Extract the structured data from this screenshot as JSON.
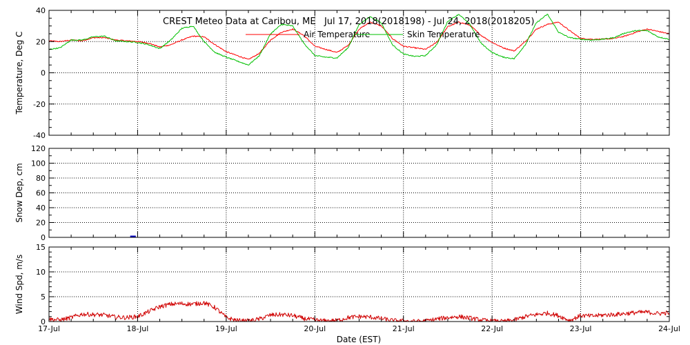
{
  "chart_data": {
    "title": "CREST Meteo Data at Caribou, ME   Jul 17, 2018(2018198) - Jul 24, 2018(2018205)",
    "xlabel": "Date (EST)",
    "x_range": [
      "2018-07-17",
      "2018-07-24"
    ],
    "x_ticks": [
      "17-Jul",
      "18-Jul",
      "19-Jul",
      "20-Jul",
      "21-Jul",
      "22-Jul",
      "23-Jul",
      "24-Jul"
    ],
    "grid": true,
    "panels": [
      {
        "type": "line",
        "ylabel": "Temperature, Deg C",
        "ylim": [
          -40,
          40
        ],
        "yticks": [
          "40",
          "20",
          "0",
          "-20",
          "-40"
        ],
        "legend_position": "top-center",
        "series": [
          {
            "name": "Air Temperature",
            "color": "#ff0000",
            "points": [
              [
                "2018-07-17 00:00",
                20.5
              ],
              [
                "2018-07-17 03:00",
                20.0
              ],
              [
                "2018-07-17 06:00",
                21.0
              ],
              [
                "2018-07-17 09:00",
                20.5
              ],
              [
                "2018-07-17 12:00",
                22.5
              ],
              [
                "2018-07-17 15:00",
                22.5
              ],
              [
                "2018-07-17 18:00",
                21.0
              ],
              [
                "2018-07-17 21:00",
                20.5
              ],
              [
                "2018-07-18 00:00",
                20.0
              ],
              [
                "2018-07-18 03:00",
                19.0
              ],
              [
                "2018-07-18 06:00",
                16.5
              ],
              [
                "2018-07-18 09:00",
                18.0
              ],
              [
                "2018-07-18 12:00",
                21.0
              ],
              [
                "2018-07-18 15:00",
                23.5
              ],
              [
                "2018-07-18 18:00",
                23.0
              ],
              [
                "2018-07-18 21:00",
                18.0
              ],
              [
                "2018-07-19 00:00",
                13.5
              ],
              [
                "2018-07-19 03:00",
                11.0
              ],
              [
                "2018-07-19 06:00",
                8.5
              ],
              [
                "2018-07-19 09:00",
                12.5
              ],
              [
                "2018-07-19 12:00",
                21.0
              ],
              [
                "2018-07-19 15:00",
                26.0
              ],
              [
                "2018-07-19 18:00",
                28.0
              ],
              [
                "2018-07-19 21:00",
                24.0
              ],
              [
                "2018-07-20 00:00",
                17.0
              ],
              [
                "2018-07-20 03:00",
                15.0
              ],
              [
                "2018-07-20 06:00",
                13.0
              ],
              [
                "2018-07-20 09:00",
                17.5
              ],
              [
                "2018-07-20 12:00",
                28.0
              ],
              [
                "2018-07-20 15:00",
                32.5
              ],
              [
                "2018-07-20 18:00",
                30.0
              ],
              [
                "2018-07-20 21:00",
                22.0
              ],
              [
                "2018-07-21 00:00",
                17.0
              ],
              [
                "2018-07-21 03:00",
                16.0
              ],
              [
                "2018-07-21 06:00",
                15.0
              ],
              [
                "2018-07-21 09:00",
                19.5
              ],
              [
                "2018-07-21 12:00",
                29.5
              ],
              [
                "2018-07-21 15:00",
                32.5
              ],
              [
                "2018-07-21 18:00",
                30.5
              ],
              [
                "2018-07-21 21:00",
                24.0
              ],
              [
                "2018-07-22 00:00",
                19.5
              ],
              [
                "2018-07-22 03:00",
                16.0
              ],
              [
                "2018-07-22 06:00",
                14.0
              ],
              [
                "2018-07-22 09:00",
                20.0
              ],
              [
                "2018-07-22 12:00",
                28.0
              ],
              [
                "2018-07-22 15:00",
                31.0
              ],
              [
                "2018-07-22 18:00",
                32.5
              ],
              [
                "2018-07-22 21:00",
                27.0
              ],
              [
                "2018-07-23 00:00",
                22.0
              ],
              [
                "2018-07-23 03:00",
                21.5
              ],
              [
                "2018-07-23 06:00",
                21.5
              ],
              [
                "2018-07-23 09:00",
                22.0
              ],
              [
                "2018-07-23 12:00",
                23.5
              ],
              [
                "2018-07-23 15:00",
                26.0
              ],
              [
                "2018-07-23 18:00",
                28.0
              ],
              [
                "2018-07-23 21:00",
                26.5
              ],
              [
                "2018-07-24 00:00",
                25.0
              ]
            ]
          },
          {
            "name": "Skin Temperature",
            "color": "#00c000",
            "points": [
              [
                "2018-07-17 00:00",
                15.0
              ],
              [
                "2018-07-17 03:00",
                16.0
              ],
              [
                "2018-07-17 06:00",
                21.0
              ],
              [
                "2018-07-17 09:00",
                21.0
              ],
              [
                "2018-07-17 12:00",
                23.0
              ],
              [
                "2018-07-17 15:00",
                23.5
              ],
              [
                "2018-07-17 18:00",
                20.5
              ],
              [
                "2018-07-17 21:00",
                20.0
              ],
              [
                "2018-07-18 00:00",
                19.5
              ],
              [
                "2018-07-18 03:00",
                18.0
              ],
              [
                "2018-07-18 06:00",
                15.5
              ],
              [
                "2018-07-18 09:00",
                21.0
              ],
              [
                "2018-07-18 12:00",
                28.5
              ],
              [
                "2018-07-18 15:00",
                30.0
              ],
              [
                "2018-07-18 18:00",
                20.0
              ],
              [
                "2018-07-18 21:00",
                13.0
              ],
              [
                "2018-07-19 00:00",
                10.0
              ],
              [
                "2018-07-19 03:00",
                7.5
              ],
              [
                "2018-07-19 06:00",
                5.0
              ],
              [
                "2018-07-19 09:00",
                11.0
              ],
              [
                "2018-07-19 12:00",
                25.0
              ],
              [
                "2018-07-19 15:00",
                31.0
              ],
              [
                "2018-07-19 18:00",
                30.0
              ],
              [
                "2018-07-19 21:00",
                19.0
              ],
              [
                "2018-07-20 00:00",
                11.0
              ],
              [
                "2018-07-20 03:00",
                10.0
              ],
              [
                "2018-07-20 06:00",
                9.5
              ],
              [
                "2018-07-20 09:00",
                16.0
              ],
              [
                "2018-07-20 12:00",
                31.0
              ],
              [
                "2018-07-20 15:00",
                36.0
              ],
              [
                "2018-07-20 18:00",
                32.0
              ],
              [
                "2018-07-20 21:00",
                18.0
              ],
              [
                "2018-07-21 00:00",
                12.0
              ],
              [
                "2018-07-21 03:00",
                10.5
              ],
              [
                "2018-07-21 06:00",
                11.0
              ],
              [
                "2018-07-21 09:00",
                18.0
              ],
              [
                "2018-07-21 12:00",
                33.0
              ],
              [
                "2018-07-21 15:00",
                37.5
              ],
              [
                "2018-07-21 18:00",
                31.0
              ],
              [
                "2018-07-21 21:00",
                19.0
              ],
              [
                "2018-07-22 00:00",
                13.0
              ],
              [
                "2018-07-22 03:00",
                10.0
              ],
              [
                "2018-07-22 06:00",
                9.0
              ],
              [
                "2018-07-22 09:00",
                18.0
              ],
              [
                "2018-07-22 12:00",
                32.0
              ],
              [
                "2018-07-22 15:00",
                37.5
              ],
              [
                "2018-07-22 18:00",
                26.0
              ],
              [
                "2018-07-22 21:00",
                22.5
              ],
              [
                "2018-07-23 00:00",
                21.5
              ],
              [
                "2018-07-23 03:00",
                21.0
              ],
              [
                "2018-07-23 06:00",
                21.5
              ],
              [
                "2018-07-23 09:00",
                22.5
              ],
              [
                "2018-07-23 12:00",
                25.5
              ],
              [
                "2018-07-23 15:00",
                27.0
              ],
              [
                "2018-07-23 18:00",
                27.0
              ],
              [
                "2018-07-23 21:00",
                23.0
              ],
              [
                "2018-07-24 00:00",
                21.5
              ]
            ]
          }
        ]
      },
      {
        "type": "line",
        "ylabel": "Snow Dep, cm",
        "ylim": [
          0,
          120
        ],
        "yticks": [
          "120",
          "100",
          "80",
          "60",
          "40",
          "20",
          "0"
        ],
        "series": [
          {
            "color": "#0000c0",
            "points": [
              [
                "2018-07-17 22:00",
                0.5
              ],
              [
                "2018-07-17 23:30",
                0.5
              ]
            ]
          }
        ]
      },
      {
        "type": "line",
        "ylabel": "Wind Spd, m/s",
        "ylim": [
          0,
          15
        ],
        "yticks": [
          "15",
          "10",
          "5",
          "0"
        ],
        "series": [
          {
            "color": "#d00000",
            "points": [
              [
                "2018-07-17 00:00",
                0.5
              ],
              [
                "2018-07-17 03:00",
                0.3
              ],
              [
                "2018-07-17 06:00",
                0.8
              ],
              [
                "2018-07-17 09:00",
                1.5
              ],
              [
                "2018-07-17 12:00",
                1.4
              ],
              [
                "2018-07-17 15:00",
                1.3
              ],
              [
                "2018-07-17 18:00",
                0.9
              ],
              [
                "2018-07-17 21:00",
                0.8
              ],
              [
                "2018-07-18 00:00",
                1.0
              ],
              [
                "2018-07-18 03:00",
                2.0
              ],
              [
                "2018-07-18 06:00",
                3.0
              ],
              [
                "2018-07-18 09:00",
                3.5
              ],
              [
                "2018-07-18 12:00",
                3.6
              ],
              [
                "2018-07-18 15:00",
                3.5
              ],
              [
                "2018-07-18 18:00",
                3.8
              ],
              [
                "2018-07-18 21:00",
                2.8
              ],
              [
                "2018-07-19 00:00",
                0.8
              ],
              [
                "2018-07-19 03:00",
                0.2
              ],
              [
                "2018-07-19 06:00",
                0.1
              ],
              [
                "2018-07-19 09:00",
                0.5
              ],
              [
                "2018-07-19 12:00",
                1.3
              ],
              [
                "2018-07-19 15:00",
                1.4
              ],
              [
                "2018-07-19 18:00",
                1.2
              ],
              [
                "2018-07-19 21:00",
                0.6
              ],
              [
                "2018-07-20 00:00",
                0.3
              ],
              [
                "2018-07-20 03:00",
                0.1
              ],
              [
                "2018-07-20 06:00",
                0.2
              ],
              [
                "2018-07-20 09:00",
                0.8
              ],
              [
                "2018-07-20 12:00",
                1.0
              ],
              [
                "2018-07-20 15:00",
                0.9
              ],
              [
                "2018-07-20 18:00",
                0.6
              ],
              [
                "2018-07-20 21:00",
                0.2
              ],
              [
                "2018-07-21 00:00",
                0.1
              ],
              [
                "2018-07-21 03:00",
                0.0
              ],
              [
                "2018-07-21 06:00",
                0.1
              ],
              [
                "2018-07-21 09:00",
                0.5
              ],
              [
                "2018-07-21 12:00",
                0.8
              ],
              [
                "2018-07-21 15:00",
                1.0
              ],
              [
                "2018-07-21 18:00",
                0.7
              ],
              [
                "2018-07-21 21:00",
                0.3
              ],
              [
                "2018-07-22 00:00",
                0.1
              ],
              [
                "2018-07-22 03:00",
                0.0
              ],
              [
                "2018-07-22 06:00",
                0.3
              ],
              [
                "2018-07-22 09:00",
                1.0
              ],
              [
                "2018-07-22 12:00",
                1.4
              ],
              [
                "2018-07-22 15:00",
                1.7
              ],
              [
                "2018-07-22 18:00",
                1.2
              ],
              [
                "2018-07-22 21:00",
                0.2
              ],
              [
                "2018-07-23 00:00",
                1.2
              ],
              [
                "2018-07-23 03:00",
                1.1
              ],
              [
                "2018-07-23 06:00",
                1.3
              ],
              [
                "2018-07-23 09:00",
                1.4
              ],
              [
                "2018-07-23 12:00",
                1.6
              ],
              [
                "2018-07-23 15:00",
                1.8
              ],
              [
                "2018-07-23 18:00",
                1.9
              ],
              [
                "2018-07-23 21:00",
                1.6
              ],
              [
                "2018-07-24 00:00",
                1.8
              ]
            ]
          }
        ]
      }
    ]
  }
}
